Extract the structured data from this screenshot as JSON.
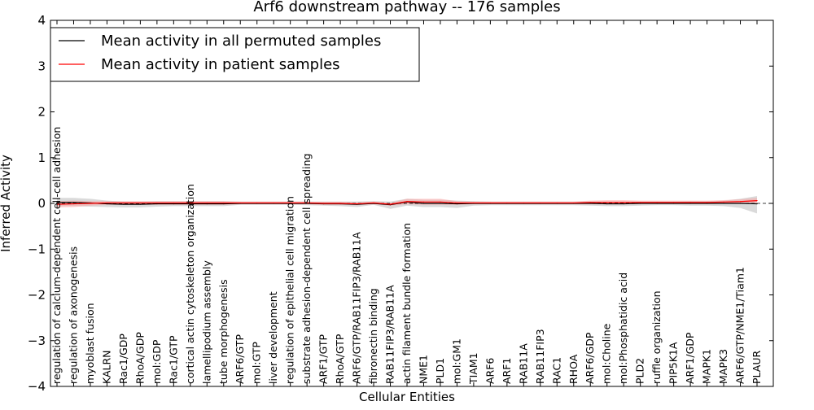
{
  "chart_data": {
    "type": "line",
    "title": "Arf6 downstream pathway -- 176 samples",
    "xlabel": "Cellular Entities",
    "ylabel": "Inferred Activity",
    "ylim": [
      -4,
      4
    ],
    "yticks": [
      -4,
      -3,
      -2,
      -1,
      0,
      1,
      2,
      3,
      4
    ],
    "ytick_labels": [
      "−4",
      "−3",
      "−2",
      "−1",
      "0",
      "1",
      "2",
      "3",
      "4"
    ],
    "grid": false,
    "legend_position": "top-left",
    "colors": {
      "permuted_line": "#000000",
      "patient_line": "#ff0000",
      "permuted_band": "#bbbbbb",
      "patient_band": "#ff9a9a"
    },
    "categories": [
      "regulation of calcium-dependent cell-cell adhesion",
      "regulation of axonogenesis",
      "myoblast fusion",
      "KALRN",
      "Rac1/GDP",
      "RhoA/GDP",
      "mol:GDP",
      "Rac1/GTP",
      "cortical actin cytoskeleton organization",
      "lamellipodium assembly",
      "tube morphogenesis",
      "ARF6/GTP",
      "mol:GTP",
      "liver development",
      "regulation of epithelial cell migration",
      "substrate adhesion-dependent cell spreading",
      "ARF1/GTP",
      "RhoA/GTP",
      "ARF6/GTP/RAB11FIP3/RAB11A",
      "fibronectin binding",
      "RAB11FIP3/RAB11A",
      "actin filament bundle formation",
      "NME1",
      "PLD1",
      "mol:GM1",
      "TIAM1",
      "ARF6",
      "ARF1",
      "RAB11A",
      "RAB11FIP3",
      "RAC1",
      "RHOA",
      "ARF6/GDP",
      "mol:Choline",
      "mol:Phosphatidic acid",
      "PLD2",
      "ruffle organization",
      "PIP5K1A",
      "ARF1/GDP",
      "MAPK1",
      "MAPK3",
      "ARF6/GTP/NME1/Tiam1",
      "PLAUR"
    ],
    "series": [
      {
        "name": "Mean activity in all permuted samples",
        "values": [
          0.02,
          0.02,
          0.01,
          -0.01,
          -0.02,
          -0.02,
          -0.01,
          -0.01,
          -0.01,
          -0.01,
          -0.01,
          0.0,
          0.0,
          0.0,
          0.0,
          0.0,
          -0.01,
          -0.01,
          -0.02,
          0.0,
          -0.03,
          0.03,
          0.0,
          0.0,
          -0.01,
          0.0,
          0.0,
          0.0,
          0.0,
          0.0,
          0.0,
          0.0,
          0.0,
          -0.01,
          -0.01,
          0.0,
          0.0,
          0.0,
          0.0,
          0.0,
          0.0,
          0.0,
          -0.01
        ],
        "band_low": [
          -0.06,
          -0.06,
          -0.07,
          -0.08,
          -0.09,
          -0.09,
          -0.07,
          -0.06,
          -0.06,
          -0.06,
          -0.06,
          -0.03,
          -0.03,
          -0.03,
          -0.03,
          -0.04,
          -0.05,
          -0.06,
          -0.08,
          -0.03,
          -0.12,
          -0.05,
          -0.08,
          -0.08,
          -0.1,
          -0.05,
          -0.04,
          -0.04,
          -0.04,
          -0.04,
          -0.04,
          -0.04,
          -0.05,
          -0.06,
          -0.06,
          -0.05,
          -0.04,
          -0.04,
          -0.05,
          -0.05,
          -0.06,
          -0.1,
          -0.22
        ],
        "band_high": [
          0.12,
          0.12,
          0.1,
          0.06,
          0.04,
          0.04,
          0.05,
          0.05,
          0.05,
          0.05,
          0.05,
          0.04,
          0.04,
          0.04,
          0.04,
          0.04,
          0.04,
          0.04,
          0.04,
          0.05,
          0.04,
          0.1,
          0.08,
          0.08,
          0.06,
          0.05,
          0.04,
          0.04,
          0.04,
          0.04,
          0.04,
          0.04,
          0.04,
          0.04,
          0.04,
          0.04,
          0.04,
          0.04,
          0.05,
          0.05,
          0.06,
          0.1,
          0.16
        ]
      },
      {
        "name": "Mean activity in patient samples",
        "values": [
          -0.02,
          -0.01,
          0.0,
          0.01,
          0.01,
          0.01,
          0.01,
          0.01,
          0.01,
          0.01,
          0.01,
          0.01,
          0.01,
          0.01,
          0.01,
          0.01,
          0.0,
          0.0,
          -0.01,
          0.01,
          -0.02,
          0.04,
          0.03,
          0.03,
          0.01,
          0.01,
          0.01,
          0.01,
          0.01,
          0.01,
          0.01,
          0.01,
          0.02,
          0.02,
          0.02,
          0.02,
          0.02,
          0.02,
          0.02,
          0.02,
          0.03,
          0.04,
          0.06
        ],
        "band_low": [
          -0.09,
          -0.08,
          -0.05,
          -0.03,
          -0.03,
          -0.03,
          -0.03,
          -0.03,
          -0.03,
          -0.03,
          -0.03,
          -0.02,
          -0.02,
          -0.02,
          -0.02,
          -0.02,
          -0.03,
          -0.03,
          -0.04,
          -0.02,
          -0.05,
          -0.02,
          -0.03,
          -0.03,
          -0.03,
          -0.02,
          -0.02,
          -0.02,
          -0.02,
          -0.02,
          -0.02,
          -0.02,
          -0.02,
          -0.02,
          -0.02,
          -0.01,
          -0.01,
          -0.01,
          -0.01,
          -0.01,
          -0.01,
          0.0,
          0.0
        ],
        "band_high": [
          0.05,
          0.06,
          0.05,
          0.05,
          0.05,
          0.05,
          0.05,
          0.05,
          0.05,
          0.05,
          0.05,
          0.04,
          0.04,
          0.04,
          0.04,
          0.04,
          0.03,
          0.03,
          0.02,
          0.04,
          0.01,
          0.1,
          0.1,
          0.1,
          0.05,
          0.04,
          0.04,
          0.04,
          0.04,
          0.04,
          0.04,
          0.04,
          0.06,
          0.07,
          0.07,
          0.06,
          0.06,
          0.06,
          0.06,
          0.06,
          0.07,
          0.09,
          0.12
        ]
      }
    ]
  }
}
